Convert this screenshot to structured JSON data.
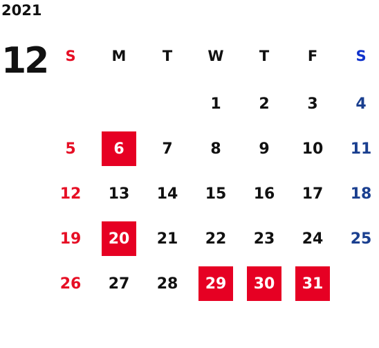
{
  "year": "2021",
  "month": "12",
  "weekdays": [
    "S",
    "M",
    "T",
    "W",
    "T",
    "F",
    "S"
  ],
  "weeks": [
    [
      "",
      "",
      "",
      "1",
      "2",
      "3",
      "4"
    ],
    [
      "5",
      "6",
      "7",
      "8",
      "9",
      "10",
      "11"
    ],
    [
      "12",
      "13",
      "14",
      "15",
      "16",
      "17",
      "18"
    ],
    [
      "19",
      "20",
      "21",
      "22",
      "23",
      "24",
      "25"
    ],
    [
      "26",
      "27",
      "28",
      "29",
      "30",
      "31",
      ""
    ]
  ],
  "highlighted_days": [
    "6",
    "20",
    "29",
    "30",
    "31"
  ],
  "colors": {
    "holiday_fill": "#e60023",
    "sunday_text": "#e60f25",
    "saturday_text": "#1a3f8f",
    "saturday_header": "#1133cc",
    "default_text": "#111111"
  }
}
